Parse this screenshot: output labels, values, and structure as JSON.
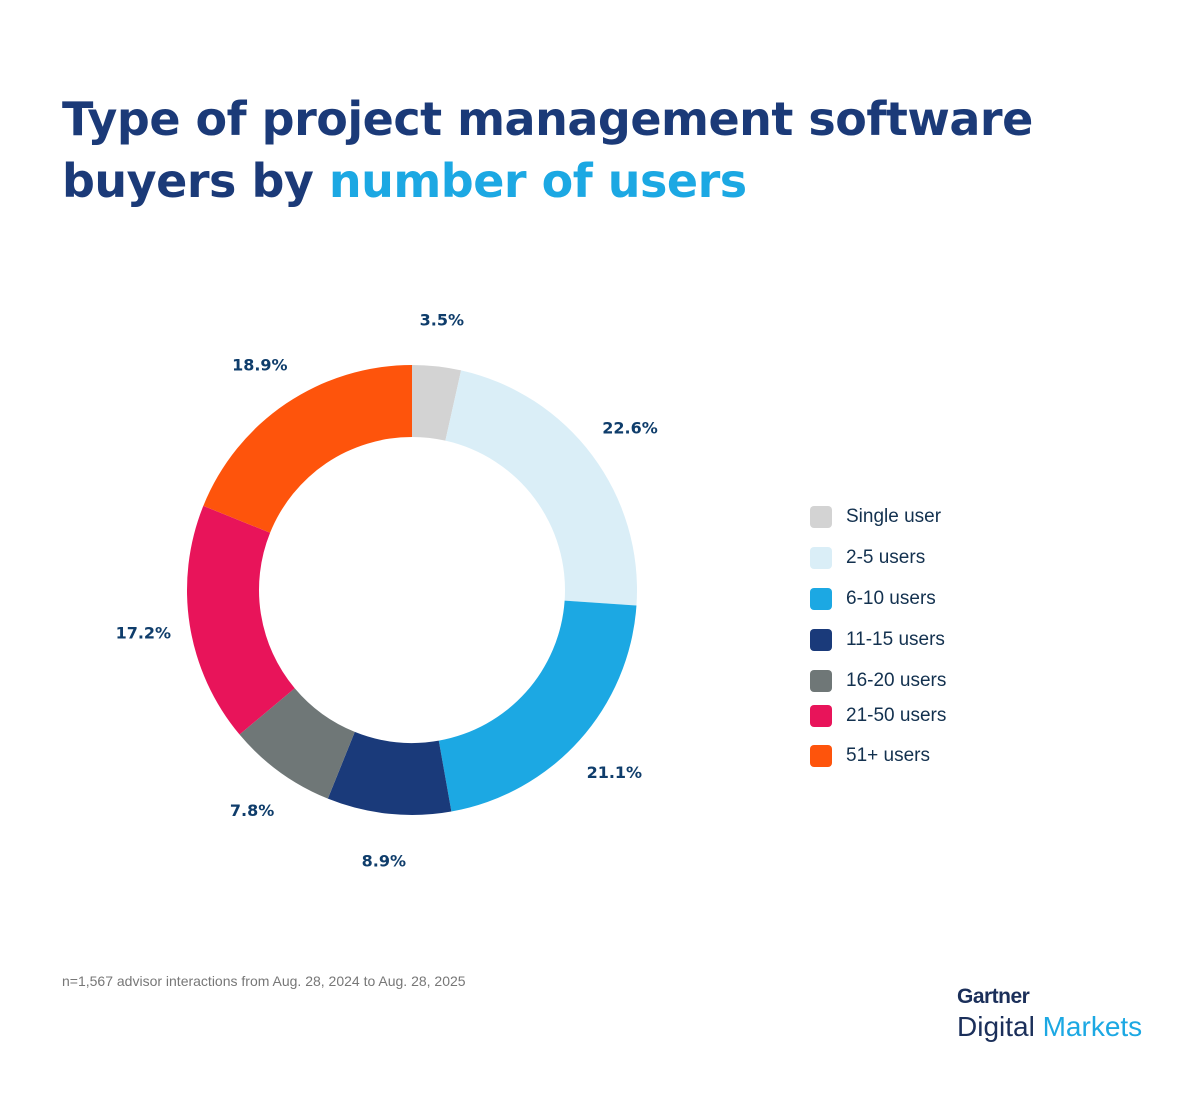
{
  "title": {
    "part1": "Type of project management software buyers by ",
    "highlight": "number of users"
  },
  "chart_data": {
    "type": "pie",
    "variant": "donut",
    "title": "Type of project management software buyers by number of users",
    "categories": [
      "Single user",
      "2-5 users",
      "6-10 users",
      "11-15 users",
      "16-20 users",
      "21-50 users",
      "51+  users"
    ],
    "values": [
      3.5,
      22.6,
      21.1,
      8.9,
      7.8,
      17.2,
      18.9
    ],
    "labels": [
      "3.5%",
      "22.6%",
      "21.1%",
      "8.9%",
      "7.8%",
      "17.2%",
      "18.9%"
    ],
    "colors": [
      "#d3d3d3",
      "#daeef7",
      "#1ca8e3",
      "#1a3a7a",
      "#6f7777",
      "#e8145a",
      "#fe540c"
    ],
    "legend_position": "right"
  },
  "footnote": "n=1,567 advisor interactions from Aug. 28, 2024 to Aug. 28, 2025",
  "logo": {
    "brand": "Gartner",
    "line2a": "Digital",
    "line2b": "Markets"
  }
}
